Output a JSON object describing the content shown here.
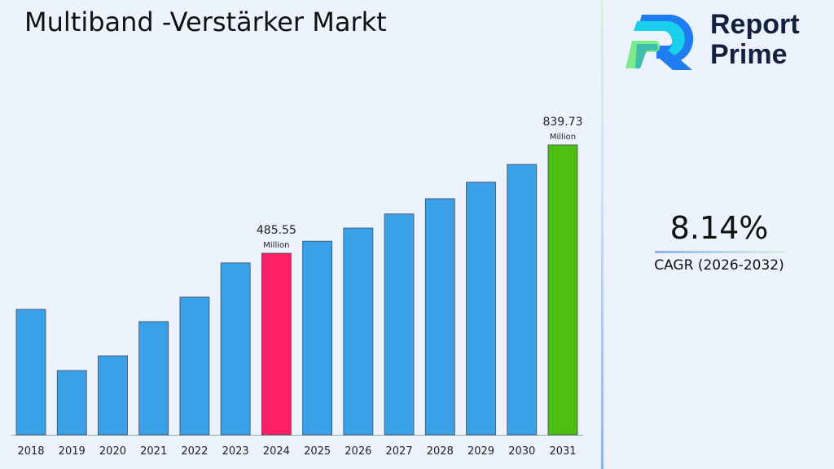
{
  "title": "Multiband -Verstärker Markt",
  "brand": {
    "line1": "Report",
    "line2": "Prime"
  },
  "cagr": {
    "value": "8.14%",
    "label": "CAGR (2026-2032)"
  },
  "colors": {
    "default": "#3aa0e8",
    "highlight_2024": "#ff1f66",
    "highlight_2031": "#4cbf10"
  },
  "chart_data": {
    "type": "bar",
    "title": "Multiband -Verstärker Markt",
    "categories": [
      "2018",
      "2019",
      "2020",
      "2021",
      "2022",
      "2023",
      "2024",
      "2025",
      "2026",
      "2027",
      "2028",
      "2029",
      "2030",
      "2031"
    ],
    "values": [
      302,
      102,
      150,
      262,
      342,
      454,
      485.55,
      525,
      568,
      614,
      664,
      718,
      776,
      839.73
    ],
    "unit": "Million",
    "data_labels": [
      {
        "category": "2024",
        "value": "485.55",
        "unit": "Million"
      },
      {
        "category": "2031",
        "value": "839.73",
        "unit": "Million"
      }
    ],
    "xlabel": "",
    "ylabel": "",
    "grid": false,
    "legend": "none"
  }
}
